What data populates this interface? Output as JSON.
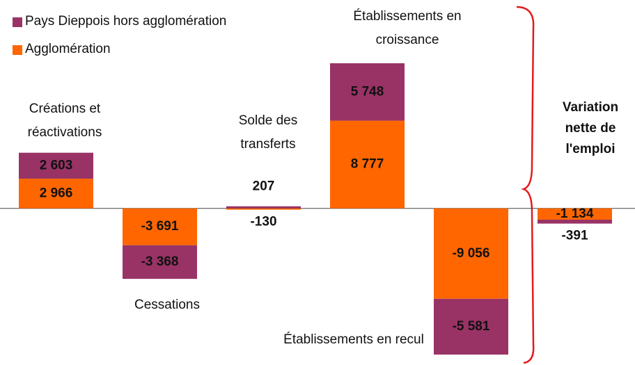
{
  "chart_data": {
    "type": "bar",
    "stacked": true,
    "categories": [
      "Créations et réactivations",
      "Cessations",
      "Solde des transferts",
      "Établissements en croissance",
      "Établissements en recul",
      "Variation nette de l'emploi"
    ],
    "series": [
      {
        "name": "Pays Dieppois hors agglomération",
        "color": "#993366",
        "values": [
          2603,
          -3368,
          207,
          5748,
          -5581,
          -391
        ],
        "value_labels": [
          "2 603",
          "-3 368",
          "207",
          "5 748",
          "-5 581",
          "-391"
        ]
      },
      {
        "name": "Agglomération",
        "color": "#ff6600",
        "values": [
          2966,
          -3691,
          -130,
          8777,
          -9056,
          -1134
        ],
        "value_labels": [
          "2 966",
          "-3 691",
          "-130",
          "8 777",
          "-9 056",
          "-1 134"
        ]
      }
    ]
  }
}
